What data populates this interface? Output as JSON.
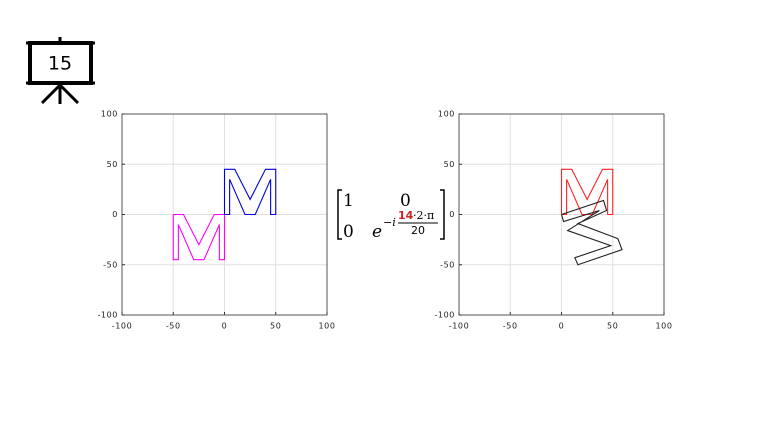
{
  "slide_number": "15",
  "matrix": {
    "a": "1",
    "b": "0",
    "c": "0",
    "base": "e",
    "exp_prefix": "−i",
    "numerator_highlight": "14",
    "numerator_rest": "·2·π",
    "denominator": "20"
  },
  "chart_data": [
    {
      "type": "line",
      "xlim": [
        -100,
        100
      ],
      "ylim": [
        -100,
        100
      ],
      "xticks": [
        -100,
        -50,
        0,
        50,
        100
      ],
      "yticks": [
        -100,
        -50,
        0,
        50,
        100
      ],
      "grid": true,
      "series": [
        {
          "color": "#ff00ff",
          "x": [
            -50,
            -50,
            -45,
            -45,
            -30,
            -20,
            -5,
            -5,
            0,
            0,
            -10,
            -25,
            -40,
            -50
          ],
          "values": [
            0,
            -45,
            -45,
            -10,
            -45,
            -45,
            -10,
            -45,
            -45,
            0,
            0,
            -30,
            0,
            0
          ]
        },
        {
          "color": "#0000dd",
          "x": [
            0,
            0,
            10,
            25,
            40,
            50,
            50,
            45,
            45,
            30,
            20,
            5,
            5,
            0
          ],
          "values": [
            0,
            45,
            45,
            15,
            45,
            45,
            0,
            0,
            35,
            0,
            0,
            35,
            0,
            0
          ]
        }
      ]
    },
    {
      "type": "line",
      "xlim": [
        -100,
        100
      ],
      "ylim": [
        -100,
        100
      ],
      "xticks": [
        -100,
        -50,
        0,
        50,
        100
      ],
      "yticks": [
        -100,
        -50,
        0,
        50,
        100
      ],
      "grid": true,
      "series": [
        {
          "color": "#ff2020",
          "x": [
            0,
            0,
            10,
            25,
            40,
            50,
            50,
            45,
            45,
            30,
            20,
            5,
            5,
            0
          ],
          "values": [
            0,
            45,
            45,
            15,
            45,
            45,
            0,
            0,
            35,
            0,
            0,
            35,
            0,
            0
          ]
        },
        {
          "color": "#222222",
          "x": [
            0,
            41,
            44,
            16,
            55,
            59,
            16,
            13,
            48,
            6,
            37,
            2,
            0
          ],
          "values": [
            0,
            14,
            4,
            -9,
            -24,
            -35,
            -50,
            -43,
            -31,
            -16,
            4,
            -7,
            0
          ]
        }
      ]
    }
  ]
}
